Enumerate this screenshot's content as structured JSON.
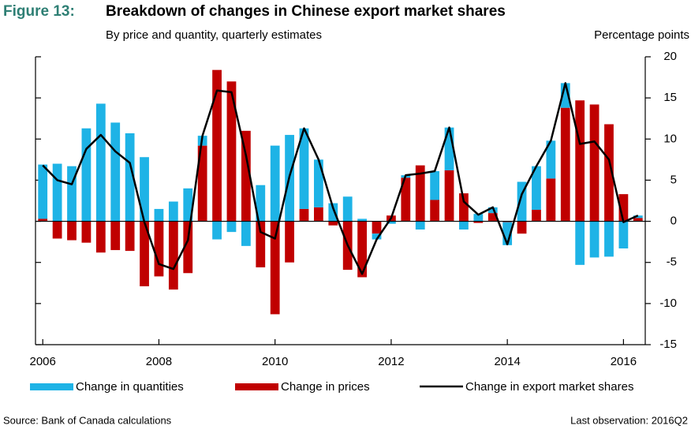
{
  "chart_data": {
    "type": "bar",
    "figure_label": "Figure 13:",
    "title": "Breakdown of changes in Chinese export market shares",
    "subtitle": "By price and quantity, quarterly estimates",
    "y_axis_label": "Percentage points",
    "source": "Source: Bank of Canada calculations",
    "note": "Last observation: 2016Q2",
    "categories": [
      "2006",
      null,
      null,
      null,
      null,
      null,
      null,
      null,
      "2008",
      null,
      null,
      null,
      null,
      null,
      null,
      null,
      "2010",
      null,
      null,
      null,
      null,
      null,
      null,
      null,
      "2012",
      null,
      null,
      null,
      null,
      null,
      null,
      null,
      "2014",
      null,
      null,
      null,
      null,
      null,
      null,
      null,
      "2016",
      null
    ],
    "ylim": [
      -15,
      20
    ],
    "yticks": [
      20,
      15,
      10,
      5,
      0,
      -5,
      -10,
      -15
    ],
    "series": [
      {
        "name": "Change in quantities",
        "type": "bar",
        "color": "#1eb3e6",
        "values": [
          6.6,
          7.0,
          6.7,
          11.3,
          14.3,
          12.0,
          10.7,
          7.8,
          1.5,
          2.4,
          4.0,
          1.2,
          -2.2,
          -1.3,
          -3.0,
          4.4,
          9.2,
          10.5,
          9.8,
          5.8,
          2.2,
          3.0,
          0.3,
          -0.7,
          -0.3,
          0.3,
          -1.0,
          3.5,
          5.2,
          -1.0,
          0.9,
          0.7,
          -2.8,
          4.8,
          5.3,
          4.6,
          3.0,
          -5.3,
          -4.4,
          -4.3,
          -3.3,
          0.3
        ]
      },
      {
        "name": "Change in prices",
        "type": "bar",
        "color": "#c00000",
        "values": [
          0.3,
          -2.1,
          -2.3,
          -2.6,
          -3.8,
          -3.5,
          -3.6,
          -7.9,
          -6.7,
          -8.3,
          -6.3,
          9.2,
          18.4,
          17.0,
          11.0,
          -5.6,
          -11.3,
          -5.0,
          1.5,
          1.7,
          -0.5,
          -5.9,
          -6.8,
          -1.5,
          0.7,
          5.3,
          6.8,
          2.6,
          6.2,
          3.4,
          -0.2,
          1.0,
          -0.1,
          -1.5,
          1.4,
          5.2,
          13.8,
          14.7,
          14.2,
          11.8,
          3.3,
          0.4
        ]
      },
      {
        "name": "Change in export market shares",
        "type": "line",
        "color": "#000000",
        "values": [
          6.8,
          5.0,
          4.5,
          8.8,
          10.5,
          8.5,
          7.1,
          -0.1,
          -5.2,
          -5.8,
          -2.3,
          10.4,
          15.9,
          15.7,
          8.0,
          -1.3,
          -2.1,
          5.5,
          11.3,
          7.5,
          1.6,
          -2.9,
          -6.4,
          -2.2,
          0.4,
          5.6,
          5.8,
          6.1,
          11.4,
          2.4,
          0.8,
          1.7,
          -2.8,
          3.3,
          6.7,
          9.8,
          16.8,
          9.4,
          9.7,
          7.5,
          -0.1,
          0.7
        ]
      }
    ]
  }
}
